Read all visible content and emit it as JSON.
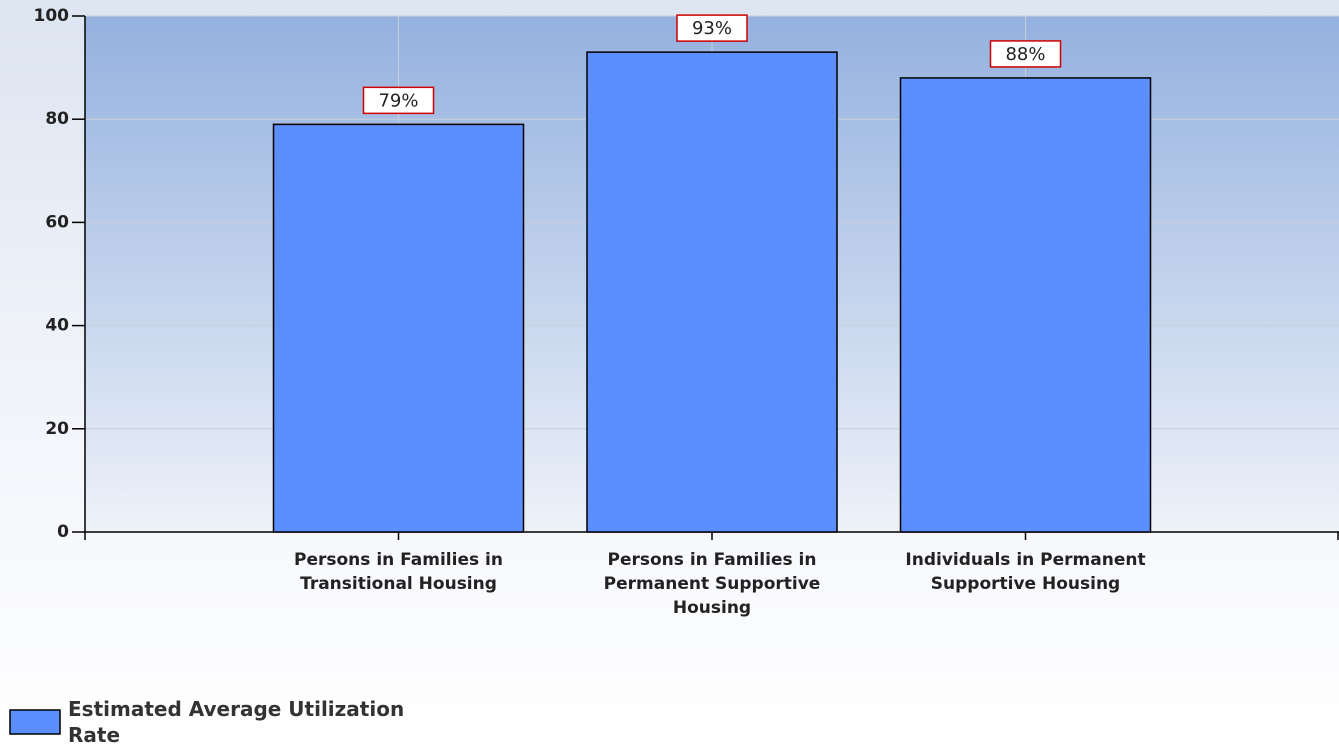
{
  "chart_data": {
    "type": "bar",
    "categories": [
      "Persons in Families in Transitional Housing",
      "Persons in Families in Permanent Supportive Housing",
      "Individuals in Permanent Supportive Housing"
    ],
    "series": [
      {
        "name": "Estimated Average Utilization Rate",
        "color": "#5b8fff",
        "values": [
          79,
          93,
          88
        ],
        "value_labels": [
          "79%",
          "93%",
          "88%"
        ]
      }
    ],
    "ylim": [
      0,
      100
    ],
    "yticks": [
      0,
      20,
      40,
      60,
      80,
      100
    ],
    "grid": true,
    "legend": "bottom-left"
  }
}
